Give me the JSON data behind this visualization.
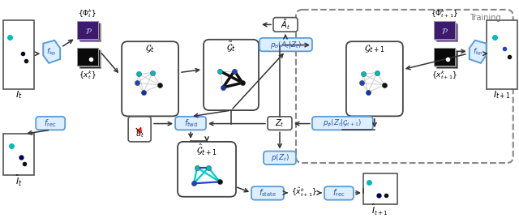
{
  "fig_width": 6.4,
  "fig_height": 2.69,
  "dpi": 100,
  "bg_color": "#ffffff",
  "blue_edge": "#5b9bd5",
  "blue_face": "#ddeeff",
  "gray_edge": "#666666",
  "arrow_color": "#333333",
  "cyan_node": "#00bbbb",
  "blue_node1": "#2244bb",
  "blue_node2": "#1133aa",
  "black_node": "#111111",
  "purple_dark": "#3d1a6e",
  "purple_mid": "#5a2d9e",
  "dark_img": "#0a0a0a"
}
